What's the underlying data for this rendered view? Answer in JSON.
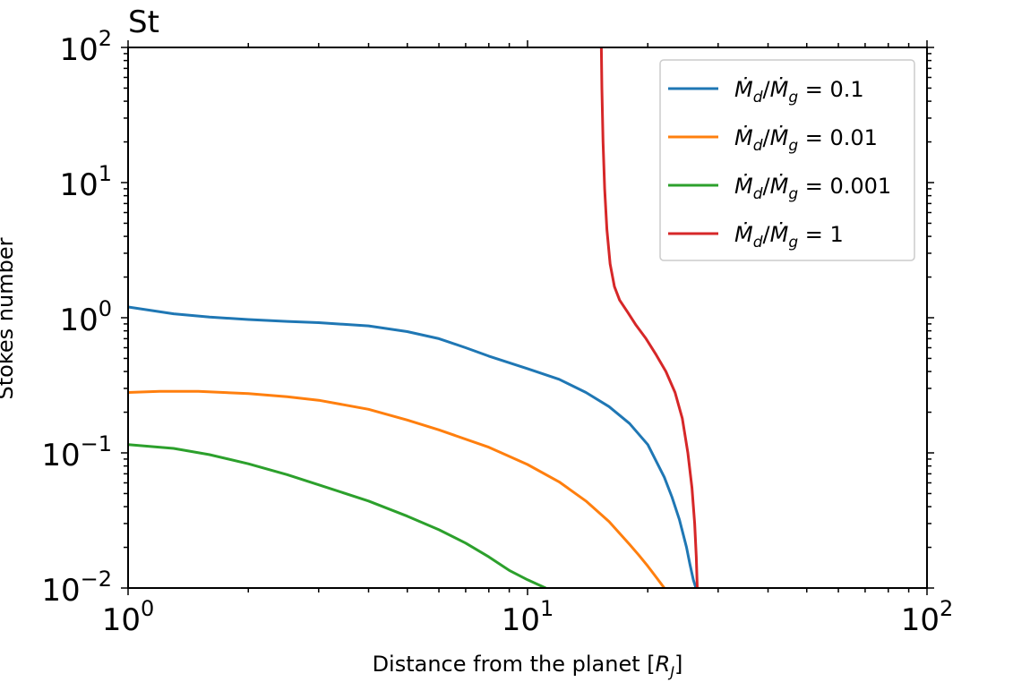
{
  "chart_data": {
    "type": "line",
    "title": "St",
    "xlabel": "Distance from the planet [R_J]",
    "ylabel": "Stokes number",
    "xscale": "log",
    "yscale": "log",
    "xlim": [
      1,
      100
    ],
    "ylim": [
      0.01,
      100
    ],
    "x_tick_labels": [
      {
        "value": 1,
        "base": "10",
        "exp": "0"
      },
      {
        "value": 10,
        "base": "10",
        "exp": "1"
      },
      {
        "value": 100,
        "base": "10",
        "exp": "2"
      }
    ],
    "y_tick_labels": [
      {
        "value": 0.01,
        "base": "10",
        "exp": "−2"
      },
      {
        "value": 0.1,
        "base": "10",
        "exp": "−1"
      },
      {
        "value": 1,
        "base": "10",
        "exp": "0"
      },
      {
        "value": 10,
        "base": "10",
        "exp": "1"
      },
      {
        "value": 100,
        "base": "10",
        "exp": "2"
      }
    ],
    "legend_position": "top-right",
    "grid": false,
    "series": [
      {
        "name": "Ṁd/Ṁg = 0.1",
        "label_ratio": "0.1",
        "color": "#1f77b4",
        "x": [
          1.0,
          1.3,
          1.6,
          2.0,
          2.5,
          3.0,
          4.0,
          5.0,
          6.0,
          7.0,
          8.0,
          10.0,
          12.0,
          14.0,
          16.0,
          18.0,
          20.0,
          22.0,
          23.0,
          24.0,
          25.0,
          25.5,
          26.0,
          26.4
        ],
        "y": [
          1.2,
          1.07,
          1.01,
          0.97,
          0.94,
          0.92,
          0.87,
          0.79,
          0.7,
          0.6,
          0.52,
          0.42,
          0.35,
          0.28,
          0.22,
          0.165,
          0.115,
          0.066,
          0.047,
          0.032,
          0.02,
          0.015,
          0.0115,
          0.01
        ]
      },
      {
        "name": "Ṁd/Ṁg = 0.01",
        "label_ratio": "0.01",
        "color": "#ff7f0e",
        "x": [
          1.0,
          1.2,
          1.5,
          2.0,
          2.5,
          3.0,
          4.0,
          5.0,
          6.0,
          8.0,
          10.0,
          12.0,
          14.0,
          16.0,
          18.0,
          19.0,
          20.0,
          21.0,
          22.0
        ],
        "y": [
          0.28,
          0.285,
          0.285,
          0.275,
          0.26,
          0.245,
          0.21,
          0.175,
          0.148,
          0.11,
          0.082,
          0.061,
          0.044,
          0.031,
          0.021,
          0.0175,
          0.0145,
          0.012,
          0.01
        ]
      },
      {
        "name": "Ṁd/Ṁg = 0.001",
        "label_ratio": "0.001",
        "color": "#2ca02c",
        "x": [
          1.0,
          1.3,
          1.6,
          2.0,
          2.5,
          3.0,
          4.0,
          5.0,
          6.0,
          7.0,
          8.0,
          9.0,
          10.0,
          11.1
        ],
        "y": [
          0.115,
          0.108,
          0.097,
          0.083,
          0.069,
          0.058,
          0.044,
          0.034,
          0.027,
          0.0215,
          0.017,
          0.0135,
          0.0115,
          0.01
        ]
      },
      {
        "name": "Ṁd/Ṁg = 1",
        "label_ratio": "1",
        "color": "#d62728",
        "x": [
          15.3,
          15.35,
          15.45,
          15.6,
          15.8,
          16.1,
          16.5,
          17.0,
          17.8,
          18.7,
          19.8,
          21.0,
          22.2,
          23.4,
          24.4,
          25.2,
          25.8,
          26.2,
          26.45,
          26.6
        ],
        "y": [
          100,
          50,
          20,
          9,
          4.5,
          2.5,
          1.7,
          1.35,
          1.1,
          0.88,
          0.7,
          0.53,
          0.4,
          0.28,
          0.18,
          0.1,
          0.055,
          0.03,
          0.017,
          0.01
        ]
      }
    ]
  }
}
